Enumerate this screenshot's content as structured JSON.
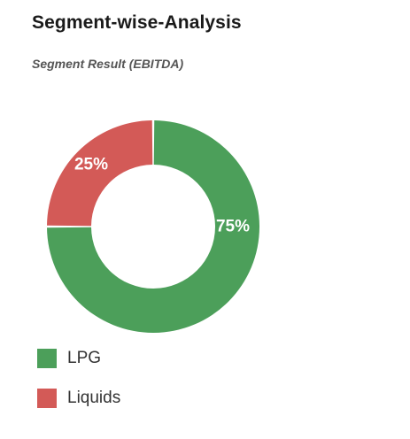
{
  "header": {
    "title": "Segment-wise-Analysis",
    "subtitle": "Segment Result (EBITDA)"
  },
  "colors": {
    "lpg": "#4c9f5a",
    "liquids": "#d35a57"
  },
  "chart_data": {
    "type": "pie",
    "donut": true,
    "title": "Segment Result (EBITDA)",
    "categories": [
      "LPG",
      "Liquids"
    ],
    "values": [
      75,
      25
    ],
    "labels": [
      "75%",
      "25%"
    ],
    "colors": [
      "#4c9f5a",
      "#d35a57"
    ],
    "legend": "bottom-left",
    "start": "top, clockwise"
  },
  "legend": {
    "items": [
      {
        "label": "LPG",
        "color": "#4c9f5a"
      },
      {
        "label": "Liquids",
        "color": "#d35a57"
      }
    ]
  }
}
